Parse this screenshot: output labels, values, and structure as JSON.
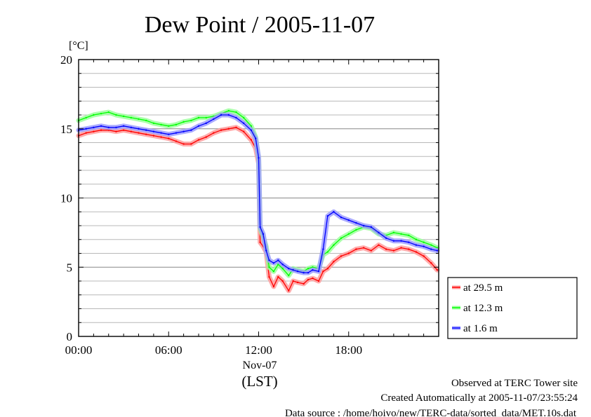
{
  "chart_data": {
    "type": "line",
    "title": "Dew Point / 2005-11-07",
    "ylabel": "[°C]",
    "xlabel": "(LST)",
    "x_unit": "hour of day (LST)",
    "xlim": [
      0,
      24
    ],
    "ylim": [
      0,
      20
    ],
    "y_ticks": [
      0,
      5,
      10,
      15,
      20
    ],
    "y_minor_step": 1,
    "x_ticks": [
      {
        "x": 0,
        "label": "00:00"
      },
      {
        "x": 6,
        "label": "06:00"
      },
      {
        "x": 12,
        "label": "12:00"
      },
      {
        "x": 18,
        "label": "18:00"
      }
    ],
    "date_label": "Nov-07",
    "grid": "horizontal",
    "legend_position": "right-bottom",
    "series": [
      {
        "name": "at 29.5 m",
        "color": "#ff0000",
        "shade": "#ff9c9c",
        "x": [
          0,
          0.5,
          1,
          1.5,
          2,
          2.5,
          3,
          3.5,
          4,
          4.5,
          5,
          5.5,
          6,
          6.5,
          7,
          7.5,
          8,
          8.5,
          9,
          9.5,
          10,
          10.5,
          11,
          11.5,
          11.8,
          12,
          12.1,
          12.3,
          12.5,
          12.7,
          13,
          13.3,
          13.6,
          14,
          14.3,
          14.6,
          15,
          15.3,
          15.6,
          16,
          16.3,
          16.6,
          17,
          17.5,
          18,
          18.5,
          19,
          19.5,
          20,
          20.5,
          21,
          21.5,
          22,
          22.5,
          23,
          23.5,
          23.9
        ],
        "values": [
          14.5,
          14.7,
          14.8,
          14.9,
          14.9,
          14.8,
          14.9,
          14.8,
          14.7,
          14.6,
          14.5,
          14.4,
          14.3,
          14.1,
          13.9,
          13.9,
          14.2,
          14.4,
          14.7,
          14.9,
          15.0,
          15.1,
          14.8,
          14.2,
          13.6,
          12.5,
          6.8,
          6.5,
          6.1,
          4.3,
          3.6,
          4.3,
          4.0,
          3.3,
          4.0,
          3.9,
          3.8,
          4.1,
          4.2,
          4.0,
          4.7,
          4.9,
          5.4,
          5.8,
          6.0,
          6.3,
          6.4,
          6.2,
          6.6,
          6.3,
          6.2,
          6.4,
          6.3,
          6.1,
          5.8,
          5.3,
          4.8
        ]
      },
      {
        "name": "at 12.3 m",
        "color": "#00ff00",
        "shade": "#9cff9c",
        "x": [
          0,
          0.5,
          1,
          1.5,
          2,
          2.5,
          3,
          3.5,
          4,
          4.5,
          5,
          5.5,
          6,
          6.5,
          7,
          7.5,
          8,
          8.5,
          9,
          9.5,
          10,
          10.5,
          11,
          11.5,
          11.8,
          12,
          12.1,
          12.3,
          12.5,
          12.7,
          13,
          13.3,
          13.6,
          14,
          14.3,
          14.6,
          15,
          15.3,
          15.6,
          16,
          16.3,
          16.6,
          17,
          17.5,
          18,
          18.5,
          19,
          19.5,
          20,
          20.5,
          21,
          21.5,
          22,
          22.5,
          23,
          23.5,
          23.9
        ],
        "values": [
          15.6,
          15.8,
          16.0,
          16.1,
          16.2,
          16.0,
          15.9,
          15.8,
          15.7,
          15.6,
          15.4,
          15.3,
          15.2,
          15.3,
          15.5,
          15.6,
          15.8,
          15.8,
          15.9,
          16.1,
          16.3,
          16.2,
          15.8,
          15.2,
          14.4,
          12.8,
          7.8,
          7.2,
          6.5,
          5.0,
          4.7,
          5.2,
          4.9,
          4.4,
          4.9,
          4.8,
          4.7,
          4.9,
          5.0,
          4.9,
          5.9,
          6.1,
          6.6,
          7.1,
          7.4,
          7.7,
          7.9,
          7.8,
          7.4,
          7.3,
          7.5,
          7.4,
          7.3,
          7.0,
          6.8,
          6.6,
          6.4
        ]
      },
      {
        "name": "at 1.6 m",
        "color": "#0000ff",
        "shade": "#9c9cff",
        "x": [
          0,
          0.5,
          1,
          1.5,
          2,
          2.5,
          3,
          3.5,
          4,
          4.5,
          5,
          5.5,
          6,
          6.5,
          7,
          7.5,
          8,
          8.5,
          9,
          9.5,
          10,
          10.5,
          11,
          11.5,
          11.8,
          12,
          12.1,
          12.3,
          12.5,
          12.7,
          13,
          13.3,
          13.6,
          14,
          14.3,
          14.6,
          15,
          15.3,
          15.6,
          16,
          16.3,
          16.6,
          17,
          17.5,
          18,
          18.5,
          19,
          19.5,
          20,
          20.5,
          21,
          21.5,
          22,
          22.5,
          23,
          23.5,
          23.9
        ],
        "values": [
          14.9,
          15.0,
          15.1,
          15.2,
          15.1,
          15.1,
          15.2,
          15.1,
          15.0,
          14.9,
          14.8,
          14.7,
          14.6,
          14.7,
          14.8,
          14.9,
          15.2,
          15.4,
          15.7,
          16.0,
          16.0,
          15.8,
          15.4,
          14.9,
          14.3,
          12.9,
          7.9,
          7.4,
          6.2,
          5.5,
          5.3,
          5.5,
          5.2,
          4.9,
          4.8,
          4.7,
          4.6,
          4.6,
          4.8,
          4.7,
          6.3,
          8.7,
          9.0,
          8.6,
          8.4,
          8.2,
          8.0,
          7.9,
          7.5,
          7.1,
          6.9,
          6.9,
          6.8,
          6.6,
          6.5,
          6.3,
          6.2
        ]
      }
    ]
  },
  "footer": {
    "line1": "Observed at TERC Tower site",
    "line2": "Created Automatically at 2005-11-07/23:55:24",
    "line3": "Data source : /home/hoivo/new/TERC-data/sorted_data/MET.10s.dat"
  }
}
